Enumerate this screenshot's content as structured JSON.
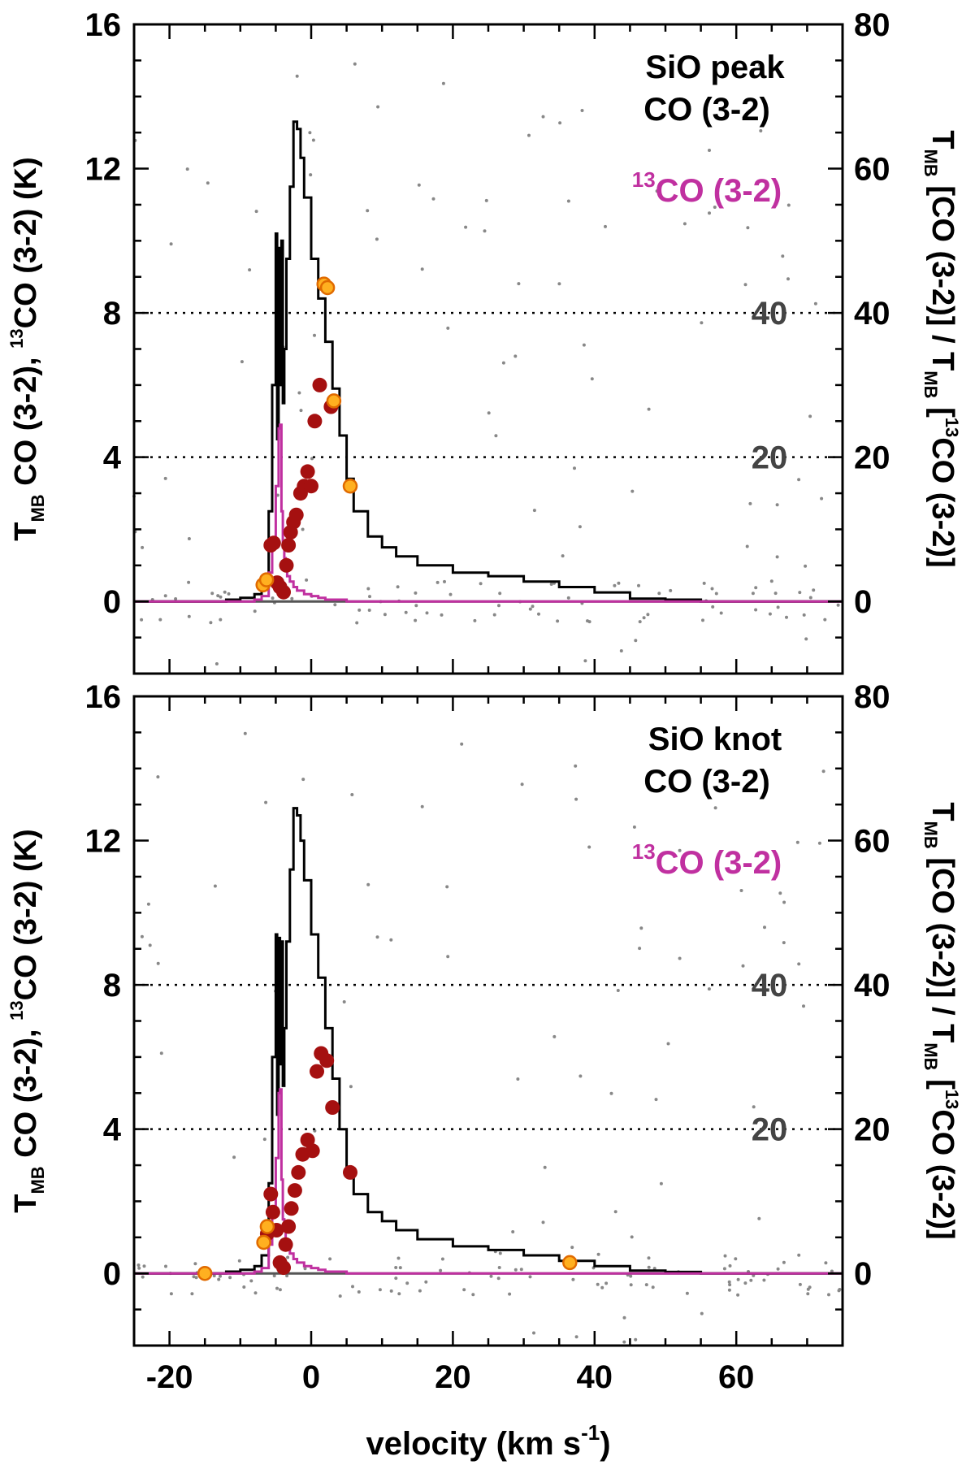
{
  "chart_data": [
    {
      "type": "line",
      "panel": "top",
      "label_lines": [
        "SiO peak",
        "CO (3-2)"
      ],
      "label_13co": {
        "sup": "13",
        "text": "CO (3-2)"
      },
      "xlim": [
        -25,
        75
      ],
      "ylim": [
        -2,
        16
      ],
      "y2lim": [
        -10,
        80
      ],
      "x_ticks": [
        -20,
        0,
        20,
        40,
        60
      ],
      "y_ticks": [
        0,
        4,
        8,
        12,
        16
      ],
      "y2_ticks": [
        0,
        20,
        40,
        60,
        80
      ],
      "ratio_guides": [
        {
          "y2": 20,
          "label": "20"
        },
        {
          "y2": 40,
          "label": "40"
        }
      ],
      "ylabel": {
        "base": "T",
        "sub": "MB",
        "mid": " CO (3-2), ",
        "sup": "13",
        "rest": "CO (3-2) (K)"
      },
      "y2label": {
        "p1": "T",
        "s1": "MB",
        "p2": " [CO (3-2)] / T",
        "s2": "MB",
        "p3": " [",
        "sup": "13",
        "p4": "CO (3-2)]"
      },
      "colors": {
        "co": "#000000",
        "co13": "#c030a0",
        "ratio_dark": "#a51010",
        "ratio_light": "#ffb020",
        "ratio_light_edge": "#e06a00",
        "noise": "#888888",
        "guide": "#444444"
      },
      "series": [
        {
          "name": "CO (3-2)",
          "x": [
            -25,
            -12,
            -10,
            -8,
            -7,
            -6,
            -5.5,
            -5,
            -4.8,
            -4.6,
            -4.4,
            -4.2,
            -4,
            -3.8,
            -3.5,
            -3,
            -2.5,
            -2,
            -1.5,
            -1,
            0,
            1,
            2,
            3,
            4,
            5,
            6,
            8,
            10,
            12,
            15,
            20,
            25,
            30,
            35,
            40,
            45,
            50,
            55,
            60,
            65,
            70,
            75
          ],
          "values": [
            0,
            0.05,
            0.1,
            0.2,
            0.5,
            2.5,
            6,
            10.2,
            4.5,
            9.8,
            6,
            10,
            5.5,
            7,
            9.5,
            11.5,
            13.3,
            13.1,
            12.3,
            11.2,
            9.5,
            8.4,
            7.2,
            5.9,
            4.6,
            3.4,
            2.5,
            1.8,
            1.5,
            1.25,
            1.0,
            0.8,
            0.7,
            0.55,
            0.4,
            0.25,
            0.08,
            0.05,
            0,
            0,
            0,
            0,
            0
          ]
        },
        {
          "name": "13CO (3-2)",
          "x": [
            -25,
            -10,
            -8,
            -7,
            -6,
            -5.5,
            -5,
            -4.6,
            -4.4,
            -4.2,
            -4,
            -3.8,
            -3.6,
            -3.4,
            -3,
            -2.5,
            -2,
            -1,
            0,
            1,
            2,
            5,
            10,
            20,
            30,
            40,
            50,
            60,
            75
          ],
          "values": [
            0,
            0,
            0.05,
            0.15,
            0.8,
            1.6,
            3.2,
            4.8,
            4.9,
            2.5,
            1.5,
            1.2,
            0.9,
            0.7,
            0.55,
            0.4,
            0.3,
            0.2,
            0.15,
            0.1,
            0.05,
            0,
            0,
            0,
            0,
            0,
            0,
            0,
            0
          ]
        },
        {
          "name": "ratio",
          "marker": "dark",
          "x": [
            -5.7,
            -5.3,
            -4.8,
            -4.4,
            -3.9,
            -3.5,
            -3.2,
            -2.9,
            -2.5,
            -2.1,
            -1.5,
            -1,
            -0.5,
            0,
            0.5,
            1.2,
            2.8
          ],
          "y2": [
            7.8,
            8.1,
            2.6,
            2.0,
            1.3,
            5.0,
            7.8,
            9.6,
            11.0,
            12.0,
            15.0,
            16.0,
            18.0,
            16.0,
            25.0,
            30.0,
            27.0
          ]
        },
        {
          "name": "ratio",
          "marker": "light",
          "x": [
            -6.8,
            -6.3,
            1.8,
            2.3,
            3.2,
            5.5
          ],
          "y2": [
            2.3,
            3.0,
            44.0,
            43.5,
            27.8,
            16.0
          ]
        }
      ]
    },
    {
      "type": "line",
      "panel": "bottom",
      "label_lines": [
        "SiO knot",
        "CO (3-2)"
      ],
      "label_13co": {
        "sup": "13",
        "text": "CO (3-2)"
      },
      "xlabel": {
        "base": "velocity (km s",
        "sup": "-1",
        "end": ")"
      },
      "xlim": [
        -25,
        75
      ],
      "ylim": [
        -2,
        16
      ],
      "y2lim": [
        -10,
        80
      ],
      "x_ticks": [
        -20,
        0,
        20,
        40,
        60
      ],
      "y_ticks": [
        0,
        4,
        8,
        12,
        16
      ],
      "y2_ticks": [
        0,
        20,
        40,
        60,
        80
      ],
      "ratio_guides": [
        {
          "y2": 20,
          "label": "20"
        },
        {
          "y2": 40,
          "label": "40"
        }
      ],
      "ylabel": {
        "base": "T",
        "sub": "MB",
        "mid": " CO (3-2), ",
        "sup": "13",
        "rest": "CO (3-2) (K)"
      },
      "y2label": {
        "p1": "T",
        "s1": "MB",
        "p2": " [CO (3-2)] / T",
        "s2": "MB",
        "p3": " [",
        "sup": "13",
        "p4": "CO (3-2)]"
      },
      "colors": {
        "co": "#000000",
        "co13": "#c030a0",
        "ratio_dark": "#a51010",
        "ratio_light": "#ffb020",
        "ratio_light_edge": "#e06a00",
        "noise": "#888888",
        "guide": "#444444"
      },
      "series": [
        {
          "name": "CO (3-2)",
          "x": [
            -25,
            -12,
            -10,
            -8,
            -7,
            -6,
            -5.5,
            -5,
            -4.8,
            -4.6,
            -4.4,
            -4.2,
            -4,
            -3.8,
            -3.5,
            -3,
            -2.5,
            -2,
            -1.5,
            -1,
            0,
            1,
            2,
            3,
            4,
            5,
            6,
            8,
            10,
            12,
            15,
            20,
            25,
            30,
            35,
            40,
            45,
            50,
            55,
            60,
            65,
            70,
            75
          ],
          "values": [
            0,
            0.05,
            0.1,
            0.2,
            0.5,
            2.5,
            6,
            9.4,
            4.4,
            9.3,
            5.8,
            9.2,
            5.2,
            6.8,
            9.2,
            11.2,
            12.9,
            12.7,
            12.0,
            10.9,
            9.4,
            8.2,
            6.8,
            5.4,
            4.0,
            2.9,
            2.2,
            1.7,
            1.45,
            1.2,
            0.95,
            0.75,
            0.65,
            0.5,
            0.35,
            0.2,
            0.08,
            0.04,
            0,
            0,
            0,
            0,
            0
          ]
        },
        {
          "name": "13CO (3-2)",
          "x": [
            -25,
            -10,
            -8,
            -7,
            -6,
            -5.5,
            -5,
            -4.6,
            -4.4,
            -4.2,
            -4,
            -3.8,
            -3.6,
            -3.4,
            -3,
            -2.5,
            -2,
            -1,
            0,
            1,
            2,
            5,
            10,
            20,
            30,
            40,
            50,
            60,
            75
          ],
          "values": [
            0,
            0,
            0.05,
            0.15,
            0.8,
            1.6,
            3.2,
            5.0,
            5.1,
            2.6,
            1.5,
            1.2,
            0.9,
            0.7,
            0.55,
            0.4,
            0.3,
            0.2,
            0.15,
            0.1,
            0.05,
            0,
            0,
            0,
            0,
            0,
            0,
            0,
            0
          ]
        },
        {
          "name": "ratio",
          "marker": "dark",
          "x": [
            -6.2,
            -5.7,
            -5.4,
            -4.9,
            -4.4,
            -3.9,
            -3.6,
            -3.2,
            -2.8,
            -2.3,
            -1.8,
            -1.2,
            -0.5,
            0.2,
            0.8,
            1.4,
            2.2,
            3.0,
            5.5
          ],
          "y2": [
            5.5,
            11.0,
            8.5,
            6.0,
            1.5,
            0.8,
            4.0,
            6.5,
            9.0,
            11.5,
            14.0,
            16.5,
            18.5,
            17.0,
            28.0,
            30.5,
            29.5,
            23.0,
            14.0
          ]
        },
        {
          "name": "ratio",
          "marker": "light",
          "x": [
            -15,
            -6.7,
            -6.2,
            36.5
          ],
          "y2": [
            0,
            4.3,
            6.5,
            1.5
          ]
        }
      ]
    }
  ]
}
